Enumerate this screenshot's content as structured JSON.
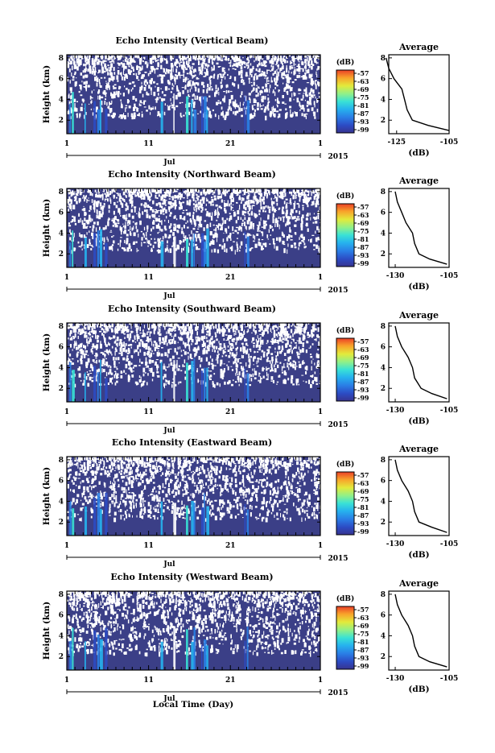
{
  "chart_data": [
    {
      "type": "heatmap",
      "title": "Echo Intensity (Vertical Beam)",
      "ylabel": "Height (km)",
      "yticks": [
        "2",
        "4",
        "6",
        "8"
      ],
      "xticks": [
        "1",
        "11",
        "21",
        "1"
      ],
      "month_label": "Jul",
      "year_label": "2015",
      "colorbar": {
        "unit": "(dB)",
        "ticks": [
          "-57",
          "-63",
          "-69",
          "-75",
          "-81",
          "-87",
          "-93",
          "-99"
        ]
      },
      "profile": {
        "title": "Average",
        "xticks": [
          "-125",
          "-105"
        ],
        "xlabel": "(dB)",
        "yticks": [
          "2",
          "4",
          "6",
          "8"
        ],
        "height_km": [
          1.0,
          1.5,
          2.0,
          3.0,
          4.0,
          5.0,
          6.0,
          7.0,
          8.0
        ],
        "db": [
          -105,
          -113,
          -119,
          -121,
          -122,
          -123,
          -126,
          -128,
          -129
        ]
      }
    },
    {
      "type": "heatmap",
      "title": "Echo Intensity (Northward Beam)",
      "ylabel": "Height (km)",
      "yticks": [
        "2",
        "4",
        "6",
        "8"
      ],
      "xticks": [
        "1",
        "11",
        "21",
        "1"
      ],
      "month_label": "Jul",
      "year_label": "2015",
      "colorbar": {
        "unit": "(dB)",
        "ticks": [
          "-57",
          "-63",
          "-69",
          "-75",
          "-81",
          "-87",
          "-93",
          "-99"
        ]
      },
      "profile": {
        "title": "Average",
        "xticks": [
          "-130",
          "-105"
        ],
        "xlabel": "(dB)",
        "yticks": [
          "2",
          "4",
          "6",
          "8"
        ],
        "height_km": [
          1.0,
          1.5,
          2.0,
          3.0,
          4.0,
          5.0,
          6.0,
          7.0,
          8.0
        ],
        "db": [
          -106,
          -114,
          -119,
          -121,
          -122,
          -125,
          -127,
          -129,
          -130
        ]
      }
    },
    {
      "type": "heatmap",
      "title": "Echo Intensity (Southward Beam)",
      "ylabel": "Height (km)",
      "yticks": [
        "2",
        "4",
        "6",
        "8"
      ],
      "xticks": [
        "1",
        "11",
        "21",
        "1"
      ],
      "month_label": "Jul",
      "year_label": "2015",
      "colorbar": {
        "unit": "(dB)",
        "ticks": [
          "-57",
          "-63",
          "-69",
          "-75",
          "-81",
          "-87",
          "-93",
          "-99"
        ]
      },
      "profile": {
        "title": "Average",
        "xticks": [
          "-130",
          "-105"
        ],
        "xlabel": "(dB)",
        "yticks": [
          "2",
          "4",
          "6",
          "8"
        ],
        "height_km": [
          1.0,
          1.5,
          2.0,
          3.0,
          4.0,
          5.0,
          6.0,
          7.0,
          8.0
        ],
        "db": [
          -106,
          -113,
          -118,
          -121,
          -122,
          -124,
          -127,
          -129,
          -130
        ]
      }
    },
    {
      "type": "heatmap",
      "title": "Echo Intensity (Eastward Beam)",
      "ylabel": "Height (km)",
      "yticks": [
        "2",
        "4",
        "6",
        "8"
      ],
      "xticks": [
        "1",
        "11",
        "21",
        "1"
      ],
      "month_label": "Jul",
      "year_label": "2015",
      "colorbar": {
        "unit": "(dB)",
        "ticks": [
          "-57",
          "-63",
          "-69",
          "-75",
          "-81",
          "-87",
          "-93",
          "-99"
        ]
      },
      "profile": {
        "title": "Average",
        "xticks": [
          "-130",
          "-105"
        ],
        "xlabel": "(dB)",
        "yticks": [
          "2",
          "4",
          "6",
          "8"
        ],
        "height_km": [
          1.0,
          1.5,
          2.0,
          3.0,
          4.0,
          5.0,
          6.0,
          7.0,
          8.0
        ],
        "db": [
          -106,
          -113,
          -119,
          -121,
          -122,
          -124,
          -127,
          -129,
          -130
        ]
      }
    },
    {
      "type": "heatmap",
      "title": "Echo Intensity (Westward Beam)",
      "ylabel": "Height (km)",
      "yticks": [
        "2",
        "4",
        "6",
        "8"
      ],
      "xticks": [
        "1",
        "11",
        "21",
        "1"
      ],
      "month_label": "Jul",
      "year_label": "2015",
      "xlabel": "Local Time (Day)",
      "colorbar": {
        "unit": "(dB)",
        "ticks": [
          "-57",
          "-63",
          "-69",
          "-75",
          "-81",
          "-87",
          "-93",
          "-99"
        ]
      },
      "profile": {
        "title": "Average",
        "xticks": [
          "-130",
          "-105"
        ],
        "xlabel": "(dB)",
        "yticks": [
          "2",
          "4",
          "6",
          "8"
        ],
        "height_km": [
          1.0,
          1.5,
          2.0,
          3.0,
          4.0,
          5.0,
          6.0,
          7.0,
          8.0
        ],
        "db": [
          -106,
          -114,
          -119,
          -121,
          -122,
          -124,
          -127,
          -129,
          -130
        ]
      }
    }
  ],
  "colors": {
    "background_field": "#3b3f87",
    "scale": [
      "#37338f",
      "#2c4bc4",
      "#2a7fe6",
      "#26b3ee",
      "#39e2d6",
      "#8ff08a",
      "#e3ea3b",
      "#f8a22a",
      "#ea3f27"
    ]
  }
}
